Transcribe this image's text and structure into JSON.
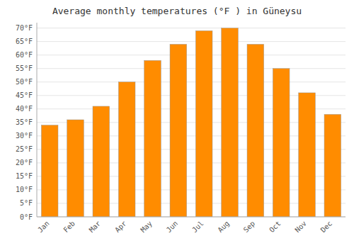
{
  "chart_data": {
    "type": "bar",
    "title": "Average monthly temperatures (°F ) in Güneysu",
    "categories": [
      "Jan",
      "Feb",
      "Mar",
      "Apr",
      "May",
      "Jun",
      "Jul",
      "Aug",
      "Sep",
      "Oct",
      "Nov",
      "Dec"
    ],
    "values": [
      34,
      36,
      41,
      50,
      58,
      64,
      69,
      70,
      64,
      55,
      46,
      38
    ],
    "color": "#FF8C00",
    "ylim": [
      0,
      72
    ],
    "yticks": [
      {
        "value": 0,
        "label": "0°F"
      },
      {
        "value": 5,
        "label": "5°F"
      },
      {
        "value": 10,
        "label": "10°F"
      },
      {
        "value": 15,
        "label": "15°F"
      },
      {
        "value": 20,
        "label": "20°F"
      },
      {
        "value": 25,
        "label": "25°F"
      },
      {
        "value": 30,
        "label": "30°F"
      },
      {
        "value": 35,
        "label": "35°F"
      },
      {
        "value": 40,
        "label": "40°F"
      },
      {
        "value": 45,
        "label": "45°F"
      },
      {
        "value": 50,
        "label": "50°F"
      },
      {
        "value": 55,
        "label": "55°F"
      },
      {
        "value": 60,
        "label": "60°F"
      },
      {
        "value": 65,
        "label": "65°F"
      },
      {
        "value": 70,
        "label": "70°F"
      }
    ],
    "grid": true
  }
}
